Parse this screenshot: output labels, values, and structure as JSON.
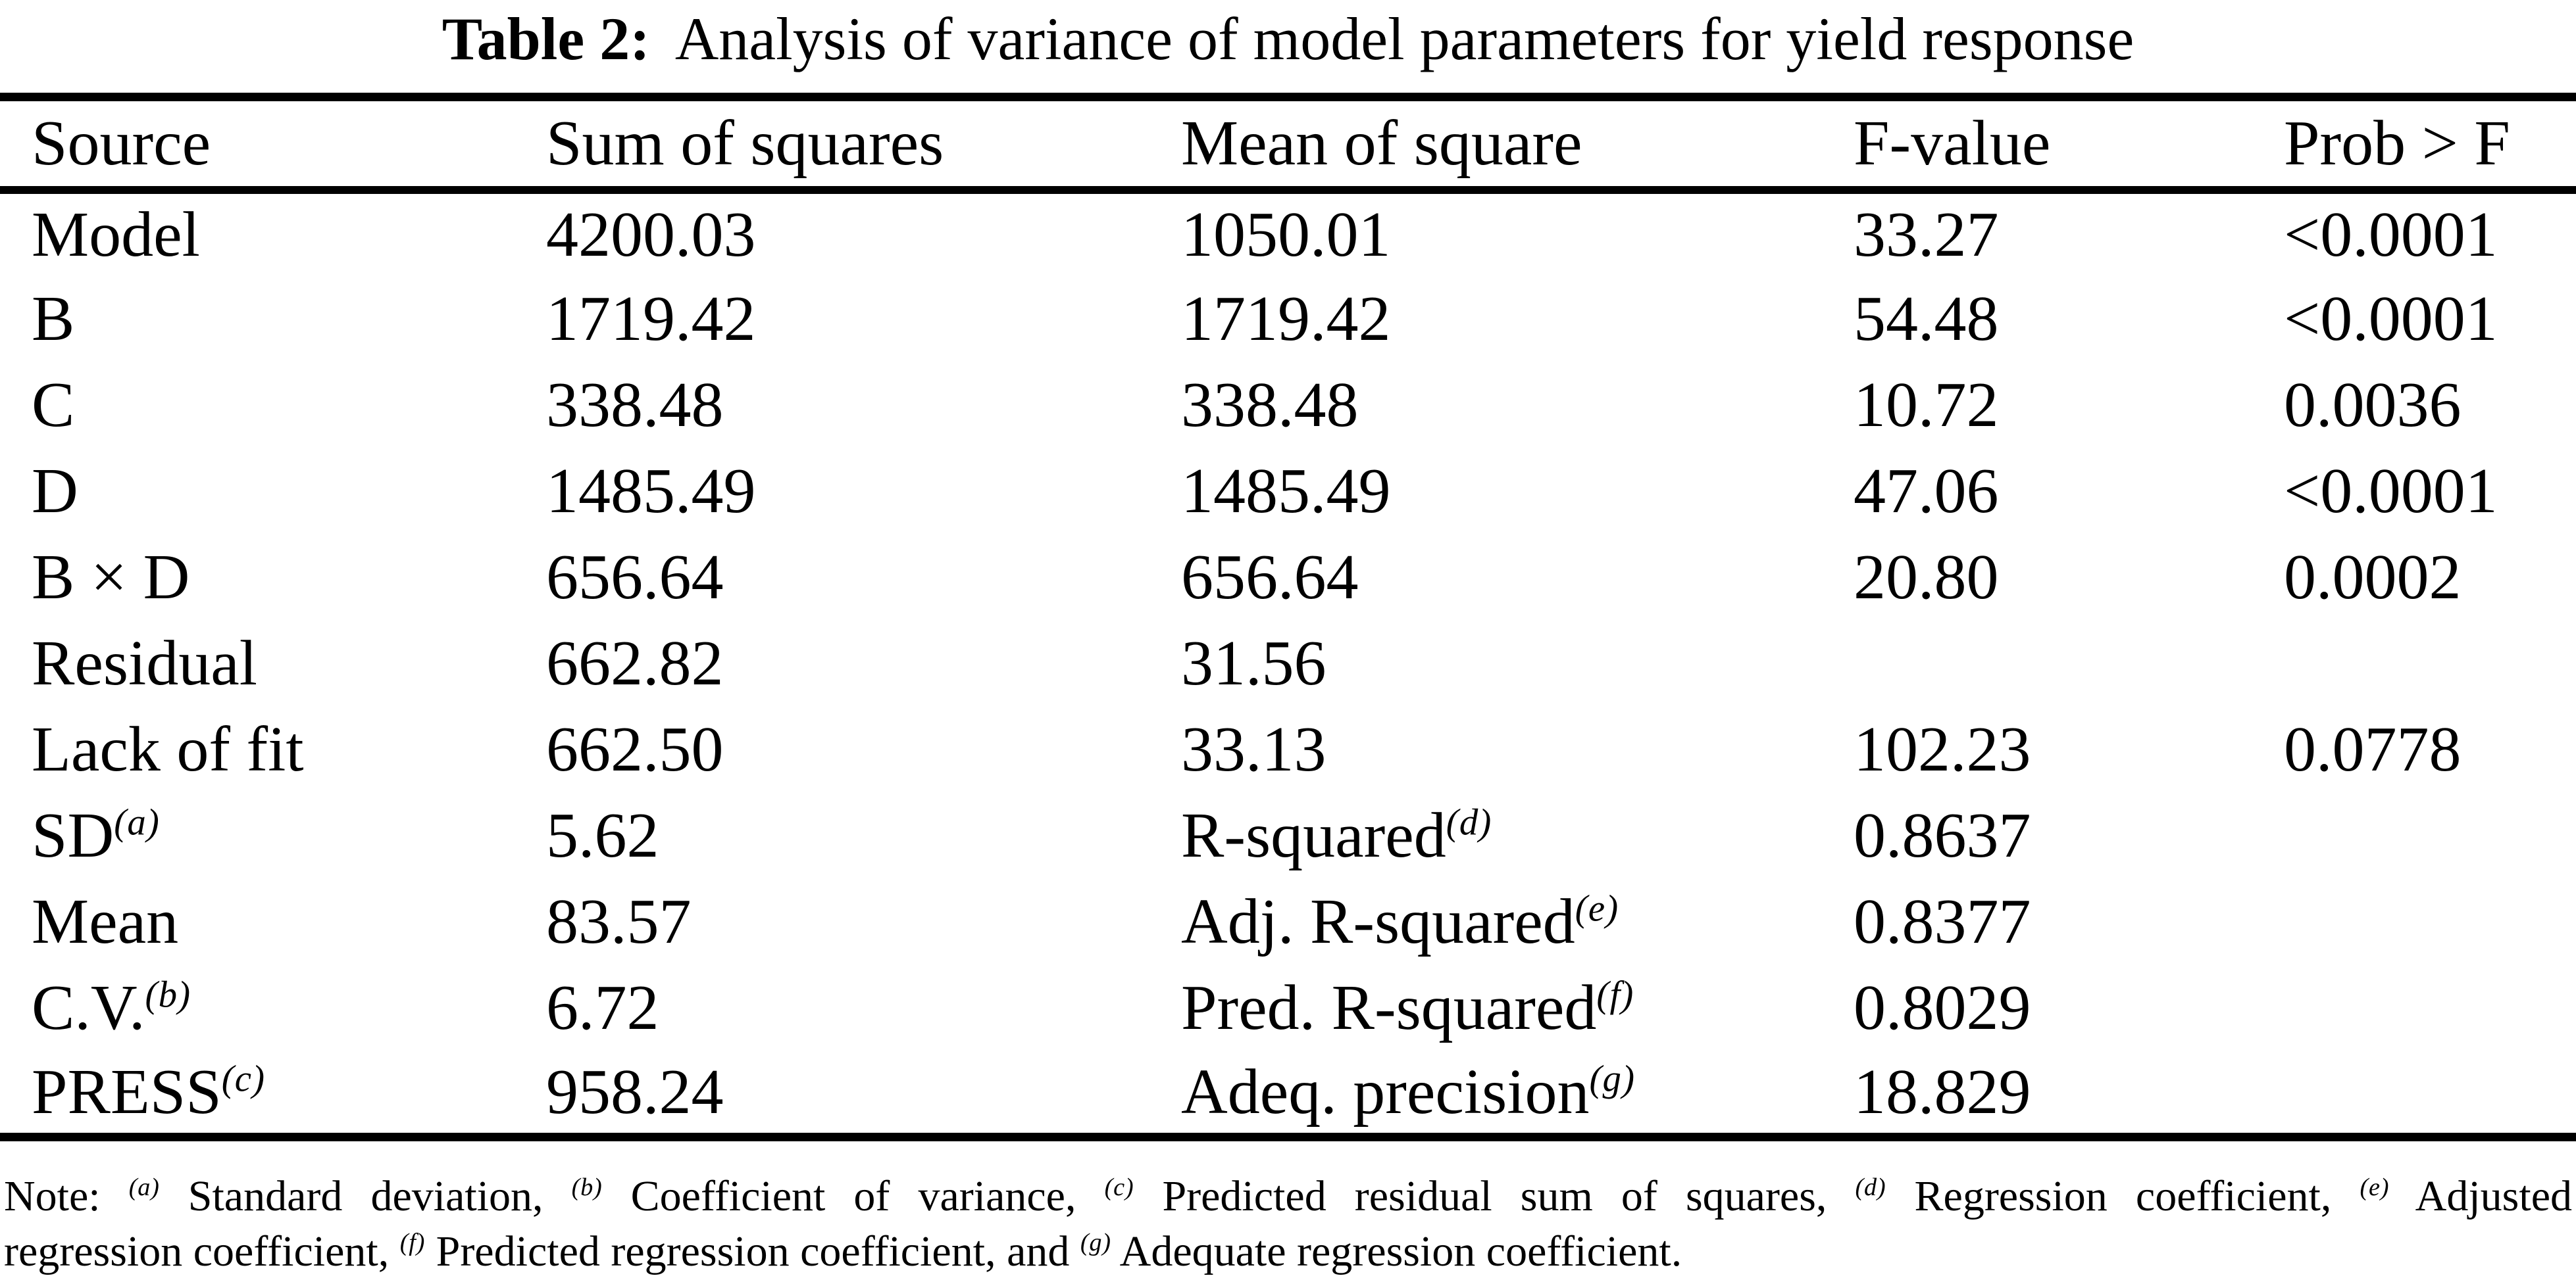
{
  "title": {
    "label": "Table 2:",
    "text": "Analysis of variance of model parameters for yield response"
  },
  "table": {
    "headers": [
      "Source",
      "Sum of squares",
      "Mean of square",
      "F-value",
      "Prob > F"
    ],
    "rows": [
      {
        "cells": [
          {
            "text": "Model"
          },
          {
            "text": "4200.03"
          },
          {
            "text": "1050.01"
          },
          {
            "text": "33.27"
          },
          {
            "text": "<0.0001"
          }
        ]
      },
      {
        "cells": [
          {
            "text": "B"
          },
          {
            "text": "1719.42"
          },
          {
            "text": "1719.42"
          },
          {
            "text": "54.48"
          },
          {
            "text": "<0.0001"
          }
        ]
      },
      {
        "cells": [
          {
            "text": "C"
          },
          {
            "text": "338.48"
          },
          {
            "text": "338.48"
          },
          {
            "text": "10.72"
          },
          {
            "text": "0.0036"
          }
        ]
      },
      {
        "cells": [
          {
            "text": "D"
          },
          {
            "text": "1485.49"
          },
          {
            "text": "1485.49"
          },
          {
            "text": "47.06"
          },
          {
            "text": "<0.0001"
          }
        ]
      },
      {
        "cells": [
          {
            "text": "B × D"
          },
          {
            "text": "656.64"
          },
          {
            "text": "656.64"
          },
          {
            "text": "20.80"
          },
          {
            "text": "0.0002"
          }
        ]
      },
      {
        "cells": [
          {
            "text": "Residual"
          },
          {
            "text": "662.82"
          },
          {
            "text": "31.56"
          },
          {
            "text": ""
          },
          {
            "text": ""
          }
        ]
      },
      {
        "cells": [
          {
            "text": "Lack of fit"
          },
          {
            "text": "662.50"
          },
          {
            "text": "33.13"
          },
          {
            "text": "102.23"
          },
          {
            "text": "0.0778"
          }
        ]
      },
      {
        "cells": [
          {
            "text": "SD",
            "sup": "(a)"
          },
          {
            "text": "5.62"
          },
          {
            "text": "R-squared",
            "sup": "(d)"
          },
          {
            "text": "0.8637"
          },
          {
            "text": ""
          }
        ]
      },
      {
        "cells": [
          {
            "text": "Mean"
          },
          {
            "text": "83.57"
          },
          {
            "text": "Adj. R-squared",
            "sup": "(e)"
          },
          {
            "text": "0.8377"
          },
          {
            "text": ""
          }
        ]
      },
      {
        "cells": [
          {
            "text": "C.V.",
            "sup": "(b)"
          },
          {
            "text": "6.72"
          },
          {
            "text": "Pred. R-squared",
            "sup": "(f)"
          },
          {
            "text": "0.8029"
          },
          {
            "text": ""
          }
        ]
      },
      {
        "cells": [
          {
            "text": "PRESS",
            "sup": "(c)"
          },
          {
            "text": "958.24"
          },
          {
            "text": "Adeq. precision",
            "sup": "(g)"
          },
          {
            "text": "18.829"
          },
          {
            "text": ""
          }
        ]
      }
    ]
  },
  "note": {
    "lines": [
      {
        "segments": [
          {
            "text": "Note: "
          },
          {
            "sup": "(a)"
          },
          {
            "text": " Standard deviation, "
          },
          {
            "sup": "(b)"
          },
          {
            "text": " Coefficient of variance, "
          },
          {
            "sup": "(c)"
          },
          {
            "text": " Predicted residual sum of squares, "
          },
          {
            "sup": "(d)"
          },
          {
            "text": " Regression coefficient, "
          },
          {
            "sup": "(e)"
          },
          {
            "text": " Adjusted"
          }
        ]
      },
      {
        "segments": [
          {
            "text": "regression coefficient, "
          },
          {
            "sup": "(f)"
          },
          {
            "text": " Predicted regression coefficient, and "
          },
          {
            "sup": "(g)"
          },
          {
            "text": " Adequate regression coefficient."
          }
        ]
      }
    ]
  },
  "colors": {
    "text": "#000000",
    "background": "#ffffff",
    "rule": "#000000"
  }
}
